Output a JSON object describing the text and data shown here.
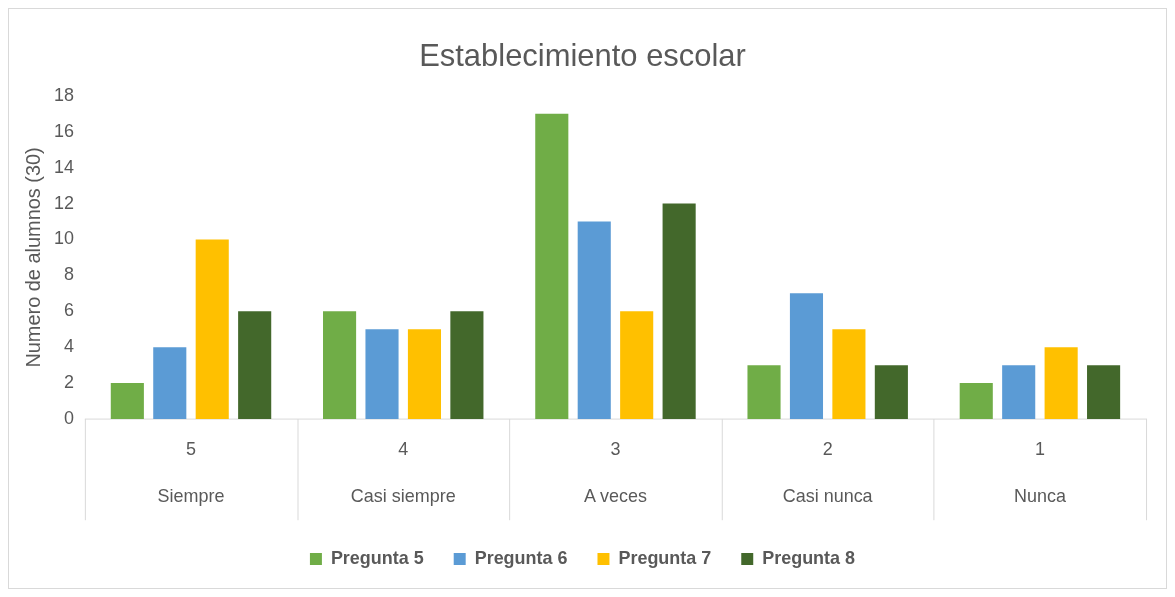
{
  "chart_data": {
    "type": "bar",
    "title": "Establecimiento escolar",
    "ylabel": "Numero de alumnos (30)",
    "categories": [
      "5\nSiempre",
      "4\nCasi siempre",
      "3\nA veces",
      "2\nCasi nunca",
      "1\nNunca"
    ],
    "series": [
      {
        "name": "Pregunta 5",
        "color": "#70ad47",
        "values": [
          2,
          6,
          17,
          3,
          2
        ]
      },
      {
        "name": "Pregunta 6",
        "color": "#5b9bd5",
        "values": [
          4,
          5,
          11,
          7,
          3
        ]
      },
      {
        "name": "Pregunta 7",
        "color": "#ffc000",
        "values": [
          10,
          5,
          6,
          5,
          4
        ]
      },
      {
        "name": "Pregunta 8",
        "color": "#43682b",
        "values": [
          6,
          6,
          12,
          3,
          3
        ]
      }
    ],
    "ylim": [
      0,
      18
    ],
    "yticks": [
      0,
      2,
      4,
      6,
      8,
      10,
      12,
      14,
      16,
      18
    ],
    "grid": false,
    "legend": "bottom"
  }
}
